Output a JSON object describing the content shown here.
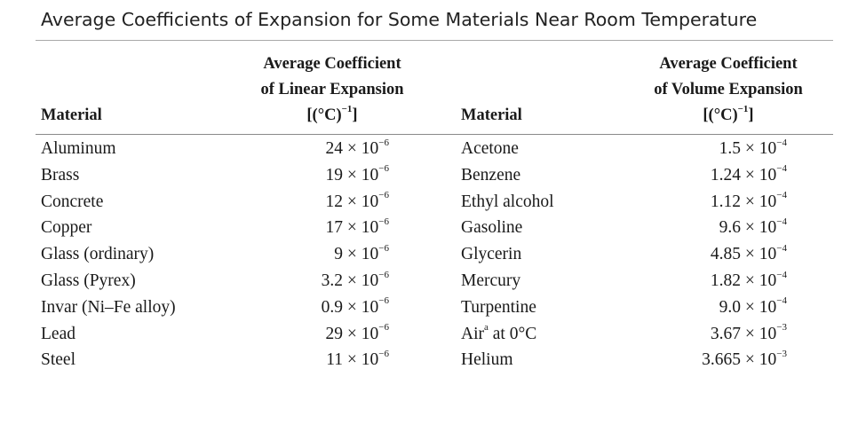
{
  "title": "Average Coefficients of Expansion for Some Materials Near Room Temperature",
  "headers": {
    "material_left": "Material",
    "linear_line1": "Average Coefficient",
    "linear_line2": "of Linear Expansion",
    "linear_unit": "[(°C)",
    "linear_unit_exp": "−1",
    "linear_unit_close": "]",
    "material_right": "Material",
    "volume_line1": "Average Coefficient",
    "volume_line2": "of Volume Expansion",
    "volume_unit": "[(°C)",
    "volume_unit_exp": "−1",
    "volume_unit_close": "]"
  },
  "rows": [
    {
      "m1": "Aluminum",
      "v1": "24 × 10",
      "e1": "−6",
      "m2": "Acetone",
      "v2": "1.5 × 10",
      "e2": "−4"
    },
    {
      "m1": "Brass",
      "v1": "19 × 10",
      "e1": "−6",
      "m2": "Benzene",
      "v2": "1.24 × 10",
      "e2": "−4"
    },
    {
      "m1": "Concrete",
      "v1": "12 × 10",
      "e1": "−6",
      "m2": "Ethyl alcohol",
      "v2": "1.12 × 10",
      "e2": "−4"
    },
    {
      "m1": "Copper",
      "v1": "17 × 10",
      "e1": "−6",
      "m2": "Gasoline",
      "v2": "9.6 × 10",
      "e2": "−4"
    },
    {
      "m1": "Glass (ordinary)",
      "v1": "9 × 10",
      "e1": "−6",
      "m2": "Glycerin",
      "v2": "4.85 × 10",
      "e2": "−4"
    },
    {
      "m1": "Glass (Pyrex)",
      "v1": "3.2 × 10",
      "e1": "−6",
      "m2": "Mercury",
      "v2": "1.82 × 10",
      "e2": "−4"
    },
    {
      "m1": "Invar (Ni–Fe alloy)",
      "v1": "0.9 × 10",
      "e1": "−6",
      "m2": "Turpentine",
      "v2": "9.0 × 10",
      "e2": "−4"
    },
    {
      "m1": "Lead",
      "v1": "29 × 10",
      "e1": "−6",
      "m2": "Air",
      "m2_sup": "a",
      "m2_suffix": " at 0°C",
      "v2": "3.67 × 10",
      "e2": "−3"
    },
    {
      "m1": "Steel",
      "v1": "11 × 10",
      "e1": "−6",
      "m2": "Helium",
      "v2": "3.665 × 10",
      "e2": "−3"
    }
  ]
}
